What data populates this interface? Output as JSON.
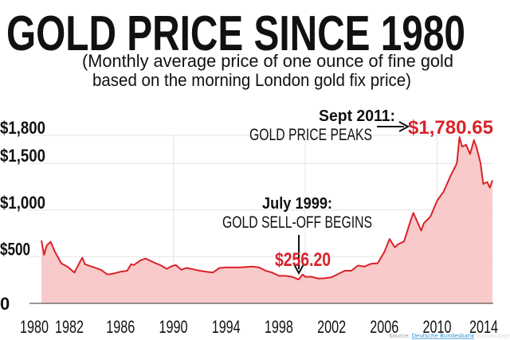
{
  "chart_data": {
    "type": "area",
    "title": "GOLD PRICE SINCE 1980",
    "subtitle": [
      "(Monthly average price of one ounce of fine gold",
      "based on the morning London gold fix price)"
    ],
    "xlabel": "",
    "ylabel": "",
    "xlim": [
      1980,
      2014.2
    ],
    "ylim": [
      0,
      1800
    ],
    "x_ticks": [
      "1980",
      "1982",
      "1986",
      "1990",
      "1994",
      "1998",
      "2002",
      "2006",
      "2010",
      "2014"
    ],
    "y_ticks": [
      "$1,800",
      "$1,500",
      "$1,000",
      "$500",
      "0"
    ],
    "y_tick_values": [
      1800,
      1500,
      1000,
      500,
      0
    ],
    "grid": true,
    "colors": {
      "line": "#d8232a",
      "fill": "#f9caca",
      "grid": "#e4e4e4"
    },
    "points": [
      [
        1980.0,
        675
      ],
      [
        1980.2,
        520
      ],
      [
        1980.4,
        620
      ],
      [
        1980.7,
        660
      ],
      [
        1981.0,
        560
      ],
      [
        1981.5,
        430
      ],
      [
        1982.0,
        390
      ],
      [
        1982.5,
        330
      ],
      [
        1982.9,
        440
      ],
      [
        1983.1,
        490
      ],
      [
        1983.3,
        420
      ],
      [
        1983.9,
        390
      ],
      [
        1984.5,
        360
      ],
      [
        1985.0,
        310
      ],
      [
        1985.5,
        320
      ],
      [
        1986.0,
        340
      ],
      [
        1986.5,
        350
      ],
      [
        1986.8,
        420
      ],
      [
        1987.0,
        410
      ],
      [
        1987.5,
        460
      ],
      [
        1987.9,
        480
      ],
      [
        1988.5,
        440
      ],
      [
        1989.0,
        410
      ],
      [
        1989.5,
        370
      ],
      [
        1989.9,
        400
      ],
      [
        1990.2,
        410
      ],
      [
        1990.6,
        360
      ],
      [
        1991.0,
        380
      ],
      [
        1991.5,
        365
      ],
      [
        1992.0,
        350
      ],
      [
        1992.5,
        340
      ],
      [
        1993.0,
        330
      ],
      [
        1993.5,
        380
      ],
      [
        1994.0,
        385
      ],
      [
        1995.0,
        385
      ],
      [
        1996.0,
        395
      ],
      [
        1996.5,
        385
      ],
      [
        1997.0,
        350
      ],
      [
        1997.5,
        330
      ],
      [
        1998.0,
        295
      ],
      [
        1998.5,
        295
      ],
      [
        1999.0,
        285
      ],
      [
        1999.5,
        256.2
      ],
      [
        1999.8,
        310
      ],
      [
        2000.0,
        285
      ],
      [
        2000.5,
        285
      ],
      [
        2001.0,
        265
      ],
      [
        2001.5,
        270
      ],
      [
        2002.0,
        280
      ],
      [
        2002.5,
        315
      ],
      [
        2003.0,
        350
      ],
      [
        2003.5,
        350
      ],
      [
        2004.0,
        405
      ],
      [
        2004.5,
        395
      ],
      [
        2005.0,
        425
      ],
      [
        2005.5,
        430
      ],
      [
        2006.0,
        550
      ],
      [
        2006.4,
        690
      ],
      [
        2006.8,
        600
      ],
      [
        2007.0,
        630
      ],
      [
        2007.5,
        665
      ],
      [
        2008.0,
        890
      ],
      [
        2008.2,
        970
      ],
      [
        2008.8,
        780
      ],
      [
        2009.0,
        860
      ],
      [
        2009.5,
        930
      ],
      [
        2010.0,
        1100
      ],
      [
        2010.5,
        1200
      ],
      [
        2011.0,
        1360
      ],
      [
        2011.5,
        1500
      ],
      [
        2011.7,
        1780.65
      ],
      [
        2011.9,
        1680
      ],
      [
        2012.2,
        1700
      ],
      [
        2012.5,
        1600
      ],
      [
        2012.8,
        1750
      ],
      [
        2013.0,
        1670
      ],
      [
        2013.3,
        1500
      ],
      [
        2013.5,
        1280
      ],
      [
        2013.8,
        1300
      ],
      [
        2014.0,
        1240
      ],
      [
        2014.2,
        1320
      ]
    ],
    "annotations": [
      {
        "heading": "Sept 2011:",
        "text": "GOLD PRICE PEAKS",
        "value": "$1,780.65",
        "x": 2011.7,
        "y": 1780.65
      },
      {
        "heading": "July 1999:",
        "text": "GOLD SELL-OFF BEGINS",
        "value": "$256.20",
        "x": 1999.5,
        "y": 256.2
      }
    ],
    "source_label": "Source:",
    "source_name": "Deutsche Bundesbank",
    "credit": "Datawrapper"
  }
}
